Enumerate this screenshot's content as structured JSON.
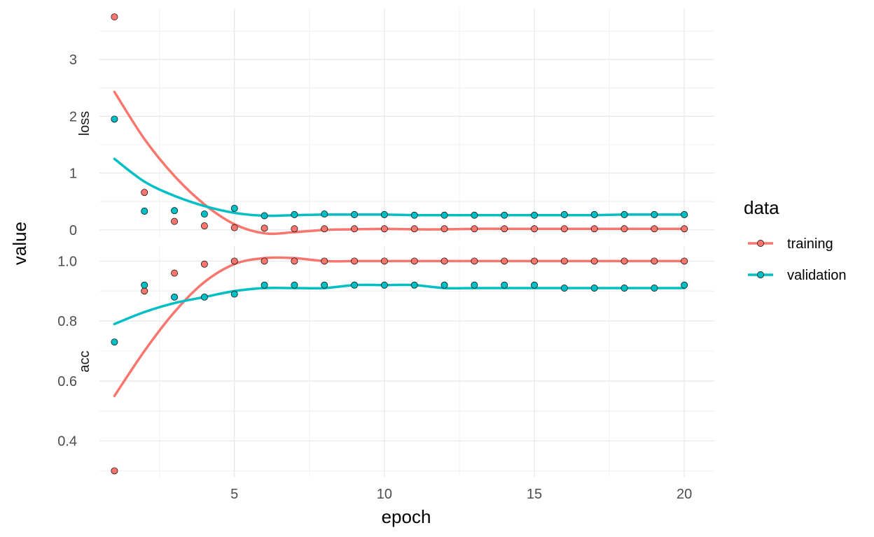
{
  "chart_data": {
    "type": "line",
    "xlabel": "epoch",
    "ylabel": "value",
    "x_ticks": [
      5,
      10,
      15,
      20
    ],
    "x_range": [
      0.5,
      21
    ],
    "legend": {
      "title": "data",
      "placement": "right",
      "entries": [
        "training",
        "validation"
      ]
    },
    "colors": {
      "training": "#F8766D",
      "validation": "#00BFC4"
    },
    "grid": true,
    "epochs": [
      1,
      2,
      3,
      4,
      5,
      6,
      7,
      8,
      9,
      10,
      11,
      12,
      13,
      14,
      15,
      16,
      17,
      18,
      19,
      20
    ],
    "panels": [
      {
        "label": "loss",
        "ylim": [
          -0.15,
          3.9
        ],
        "y_ticks": [
          0,
          1,
          2,
          3
        ],
        "series": [
          {
            "name": "training",
            "points": [
              3.75,
              0.66,
              0.15,
              0.07,
              0.04,
              0.03,
              0.02,
              0.02,
              0.02,
              0.02,
              0.02,
              0.02,
              0.02,
              0.02,
              0.02,
              0.02,
              0.02,
              0.02,
              0.02,
              0.02
            ],
            "smooth": [
              2.43,
              1.6,
              0.95,
              0.45,
              0.1,
              -0.06,
              -0.04,
              0.0,
              0.01,
              0.02,
              0.01,
              0.01,
              0.02,
              0.02,
              0.02,
              0.02,
              0.02,
              0.02,
              0.02,
              0.02
            ]
          },
          {
            "name": "validation",
            "points": [
              1.95,
              0.33,
              0.34,
              0.28,
              0.38,
              0.25,
              0.27,
              0.28,
              0.27,
              0.27,
              0.26,
              0.26,
              0.26,
              0.26,
              0.26,
              0.27,
              0.27,
              0.27,
              0.27,
              0.27
            ],
            "smooth": [
              1.25,
              0.85,
              0.6,
              0.42,
              0.3,
              0.25,
              0.26,
              0.27,
              0.27,
              0.27,
              0.26,
              0.26,
              0.26,
              0.26,
              0.26,
              0.26,
              0.26,
              0.27,
              0.27,
              0.27
            ]
          }
        ]
      },
      {
        "label": "acc",
        "ylim": [
          0.28,
          1.05
        ],
        "y_ticks": [
          0.4,
          0.6,
          0.8,
          1.0
        ],
        "y_tick_labels": [
          "0.4",
          "0.6",
          "0.8",
          "1.0"
        ],
        "series": [
          {
            "name": "training",
            "points": [
              0.3,
              0.9,
              0.96,
              0.99,
              1.0,
              1.0,
              1.0,
              1.0,
              1.0,
              1.0,
              1.0,
              1.0,
              1.0,
              1.0,
              1.0,
              1.0,
              1.0,
              1.0,
              1.0,
              1.0
            ],
            "smooth": [
              0.55,
              0.7,
              0.83,
              0.93,
              0.99,
              1.01,
              1.01,
              1.0,
              1.0,
              1.0,
              1.0,
              1.0,
              1.0,
              1.0,
              1.0,
              1.0,
              1.0,
              1.0,
              1.0,
              1.0
            ]
          },
          {
            "name": "validation",
            "points": [
              0.73,
              0.92,
              0.88,
              0.88,
              0.89,
              0.92,
              0.92,
              0.92,
              0.92,
              0.92,
              0.92,
              0.92,
              0.92,
              0.92,
              0.92,
              0.91,
              0.91,
              0.91,
              0.91,
              0.92
            ],
            "smooth": [
              0.79,
              0.83,
              0.86,
              0.88,
              0.9,
              0.91,
              0.91,
              0.91,
              0.92,
              0.92,
              0.92,
              0.91,
              0.91,
              0.91,
              0.91,
              0.91,
              0.91,
              0.91,
              0.91,
              0.91
            ]
          }
        ]
      }
    ]
  }
}
